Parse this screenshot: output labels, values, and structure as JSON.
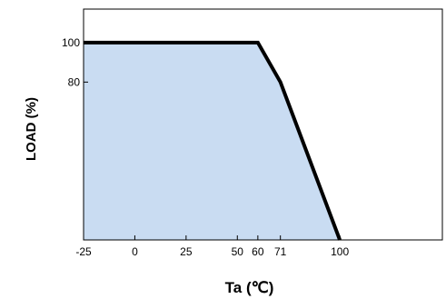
{
  "chart_data": {
    "type": "area",
    "title": "",
    "xlabel": "Ta (℃)",
    "ylabel": "LOAD (%)",
    "x_ticks": [
      {
        "value": -25,
        "label": "-25"
      },
      {
        "value": 0,
        "label": "0"
      },
      {
        "value": 25,
        "label": "25"
      },
      {
        "value": 50,
        "label": "50"
      },
      {
        "value": 60,
        "label": "60"
      },
      {
        "value": 71,
        "label": "71"
      },
      {
        "value": 100,
        "label": "100"
      }
    ],
    "y_ticks": [
      {
        "value": 100,
        "label": "100"
      },
      {
        "value": 80,
        "label": "80"
      }
    ],
    "xlim": [
      -25,
      150
    ],
    "ylim": [
      0,
      117
    ],
    "grid": false,
    "series": [
      {
        "x": [
          -25,
          60,
          71,
          100
        ],
        "y": [
          100,
          100,
          80,
          0
        ]
      }
    ],
    "colors": {
      "fill": "#c9dcf2",
      "line": "#000000",
      "frame": "#000000"
    }
  }
}
